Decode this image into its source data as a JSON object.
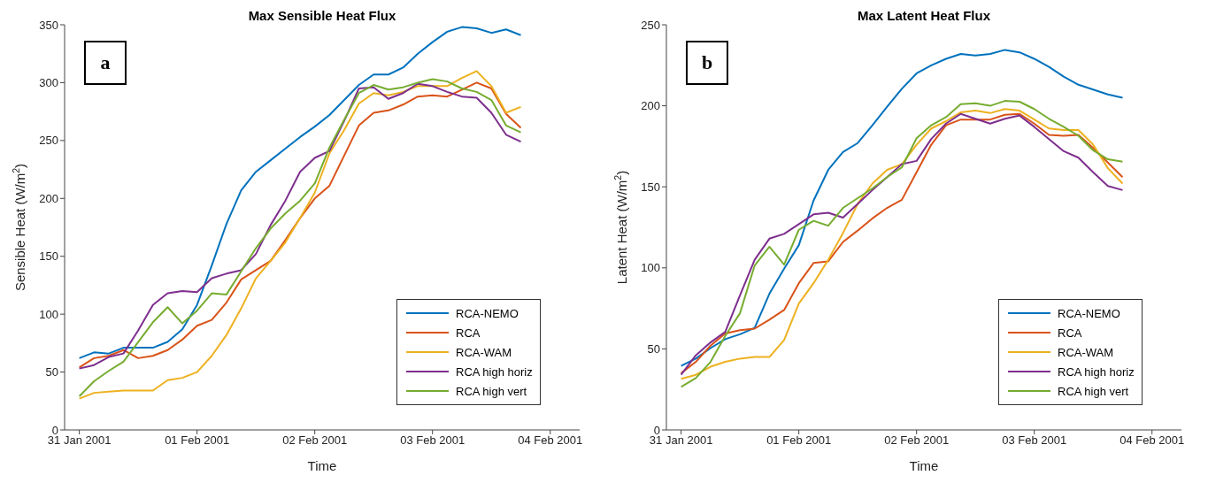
{
  "chart_data": [
    {
      "type": "line",
      "title": "Max Sensible Heat Flux",
      "xlabel": "Time",
      "ylabel": "Sensible Heat (W/m$^{2}$)",
      "annotations": [
        "a"
      ],
      "x": [
        "2001-01-31T00:00",
        "2001-01-31T03:00",
        "2001-01-31T06:00",
        "2001-01-31T09:00",
        "2001-01-31T12:00",
        "2001-01-31T15:00",
        "2001-01-31T18:00",
        "2001-01-31T21:00",
        "2001-02-01T00:00",
        "2001-02-01T03:00",
        "2001-02-01T06:00",
        "2001-02-01T09:00",
        "2001-02-01T12:00",
        "2001-02-01T15:00",
        "2001-02-01T18:00",
        "2001-02-01T21:00",
        "2001-02-02T00:00",
        "2001-02-02T03:00",
        "2001-02-02T06:00",
        "2001-02-02T09:00",
        "2001-02-02T12:00",
        "2001-02-02T15:00",
        "2001-02-02T18:00",
        "2001-02-02T21:00",
        "2001-02-03T00:00",
        "2001-02-03T03:00",
        "2001-02-03T06:00",
        "2001-02-03T09:00",
        "2001-02-03T12:00",
        "2001-02-03T15:00",
        "2001-02-03T18:00"
      ],
      "series": [
        {
          "name": "RCA-NEMO",
          "color": "#0072bd",
          "values": [
            62,
            67,
            66,
            71,
            71,
            71,
            76,
            87,
            108,
            142,
            178,
            207,
            223,
            233,
            243,
            253,
            262,
            272,
            285,
            298,
            307,
            307,
            313,
            325,
            335,
            344,
            348,
            347,
            343,
            346,
            341
          ]
        },
        {
          "name": "RCA",
          "color": "#d95319",
          "values": [
            54,
            62,
            64,
            69,
            62,
            64,
            69,
            78,
            90,
            95,
            110,
            130,
            138,
            146,
            164,
            183,
            200,
            211,
            237,
            263,
            274,
            276,
            281,
            288,
            289,
            288,
            294,
            300,
            295,
            273,
            261
          ]
        },
        {
          "name": "RCA-WAM",
          "color": "#edb120",
          "values": [
            27,
            32,
            33,
            34,
            34,
            34,
            43,
            45,
            50,
            64,
            82,
            105,
            131,
            146,
            162,
            183,
            205,
            239,
            259,
            282,
            291,
            289,
            292,
            297,
            297,
            297,
            304,
            310,
            297,
            274,
            279
          ]
        },
        {
          "name": "RCA high horiz",
          "color": "#7e2f8e",
          "values": [
            53,
            56,
            63,
            66,
            86,
            108,
            118,
            120,
            119,
            131,
            135,
            138,
            152,
            177,
            198,
            223,
            235,
            241,
            267,
            295,
            296,
            286,
            291,
            299,
            297,
            292,
            288,
            287,
            274,
            255,
            249
          ]
        },
        {
          "name": "RCA high vert",
          "color": "#77ac30",
          "values": [
            29,
            42,
            51,
            59,
            76,
            93,
            106,
            92,
            103,
            118,
            117,
            137,
            157,
            174,
            187,
            198,
            213,
            244,
            268,
            291,
            298,
            294,
            296,
            300,
            303,
            301,
            295,
            292,
            285,
            263,
            257
          ]
        }
      ],
      "xlim": [
        "2001-01-30T21:00",
        "2001-02-04T06:00"
      ],
      "xticks": [
        {
          "value": "2001-01-31",
          "label": "31 Jan 2001"
        },
        {
          "value": "2001-02-01",
          "label": "01 Feb 2001"
        },
        {
          "value": "2001-02-02",
          "label": "02 Feb 2001"
        },
        {
          "value": "2001-02-03",
          "label": "03 Feb 2001"
        },
        {
          "value": "2001-02-04",
          "label": "04 Feb 2001"
        }
      ],
      "ylim": [
        0,
        350
      ],
      "yticks": [
        0,
        50,
        100,
        150,
        200,
        250,
        300,
        350
      ],
      "grid": false,
      "legend": "bottom right",
      "marker": "none",
      "line_style": "solid"
    },
    {
      "type": "line",
      "title": "Max Latent Heat Flux",
      "xlabel": "Time",
      "ylabel": "Latent Heat (W/m$^{2}$)",
      "annotations": [
        "b"
      ],
      "x": [
        "2001-01-31T00:00",
        "2001-01-31T03:00",
        "2001-01-31T06:00",
        "2001-01-31T09:00",
        "2001-01-31T12:00",
        "2001-01-31T15:00",
        "2001-01-31T18:00",
        "2001-01-31T21:00",
        "2001-02-01T00:00",
        "2001-02-01T03:00",
        "2001-02-01T06:00",
        "2001-02-01T09:00",
        "2001-02-01T12:00",
        "2001-02-01T15:00",
        "2001-02-01T18:00",
        "2001-02-01T21:00",
        "2001-02-02T00:00",
        "2001-02-02T03:00",
        "2001-02-02T06:00",
        "2001-02-02T09:00",
        "2001-02-02T12:00",
        "2001-02-02T15:00",
        "2001-02-02T18:00",
        "2001-02-02T21:00",
        "2001-02-03T00:00",
        "2001-02-03T03:00",
        "2001-02-03T06:00",
        "2001-02-03T09:00",
        "2001-02-03T12:00",
        "2001-02-03T15:00",
        "2001-02-03T18:00"
      ],
      "series": [
        {
          "name": "RCA-NEMO",
          "color": "#0072bd",
          "values": [
            39.5,
            44,
            50.5,
            56,
            59,
            63,
            84,
            99.5,
            114,
            141.5,
            160.5,
            171.5,
            177,
            188,
            199.5,
            210.5,
            220,
            225,
            229,
            232,
            231,
            232,
            234.5,
            233,
            229,
            224,
            218,
            213,
            210,
            207,
            205
          ]
        },
        {
          "name": "RCA",
          "color": "#d95319",
          "values": [
            35,
            42,
            52,
            59.5,
            61.5,
            62.5,
            68,
            74,
            90.5,
            103,
            104,
            116,
            123,
            130.5,
            137,
            142,
            159,
            176,
            188,
            191.5,
            191.5,
            191.5,
            194.5,
            195,
            189,
            182,
            181.5,
            182,
            174,
            165,
            156
          ]
        },
        {
          "name": "RCA-WAM",
          "color": "#edb120",
          "values": [
            31.5,
            34,
            39,
            42,
            44,
            45,
            45,
            55.5,
            78,
            90.5,
            105,
            121.5,
            139.5,
            152,
            160.5,
            164,
            176,
            186,
            190.5,
            196,
            197,
            195.5,
            198,
            197,
            191.5,
            186,
            185,
            185,
            176,
            161.5,
            152
          ]
        },
        {
          "name": "RCA high horiz",
          "color": "#7e2f8e",
          "values": [
            34,
            46,
            54,
            60.5,
            83,
            105,
            118,
            121,
            127,
            133,
            134,
            131,
            139.5,
            148,
            156,
            164,
            166,
            179.5,
            189,
            195,
            192,
            189,
            192,
            194,
            187,
            179.5,
            172,
            168,
            159,
            150.5,
            148
          ]
        },
        {
          "name": "RCA high vert",
          "color": "#77ac30",
          "values": [
            26.5,
            32,
            42,
            58,
            72,
            101.5,
            113,
            102,
            123.5,
            129,
            126,
            137,
            143,
            149,
            156,
            162,
            180,
            188,
            193,
            201,
            201.5,
            200,
            203,
            202.5,
            198,
            192,
            187,
            181.5,
            172.5,
            167,
            165.5
          ]
        }
      ],
      "xlim": [
        "2001-01-30T21:00",
        "2001-02-04T06:00"
      ],
      "xticks": [
        {
          "value": "2001-01-31",
          "label": "31 Jan 2001"
        },
        {
          "value": "2001-02-01",
          "label": "01 Feb 2001"
        },
        {
          "value": "2001-02-02",
          "label": "02 Feb 2001"
        },
        {
          "value": "2001-02-03",
          "label": "03 Feb 2001"
        },
        {
          "value": "2001-02-04",
          "label": "04 Feb 2001"
        }
      ],
      "ylim": [
        0,
        250
      ],
      "yticks": [
        0,
        50,
        100,
        150,
        200,
        250
      ],
      "grid": false,
      "legend": "bottom right",
      "marker": "none",
      "line_style": "solid"
    }
  ]
}
